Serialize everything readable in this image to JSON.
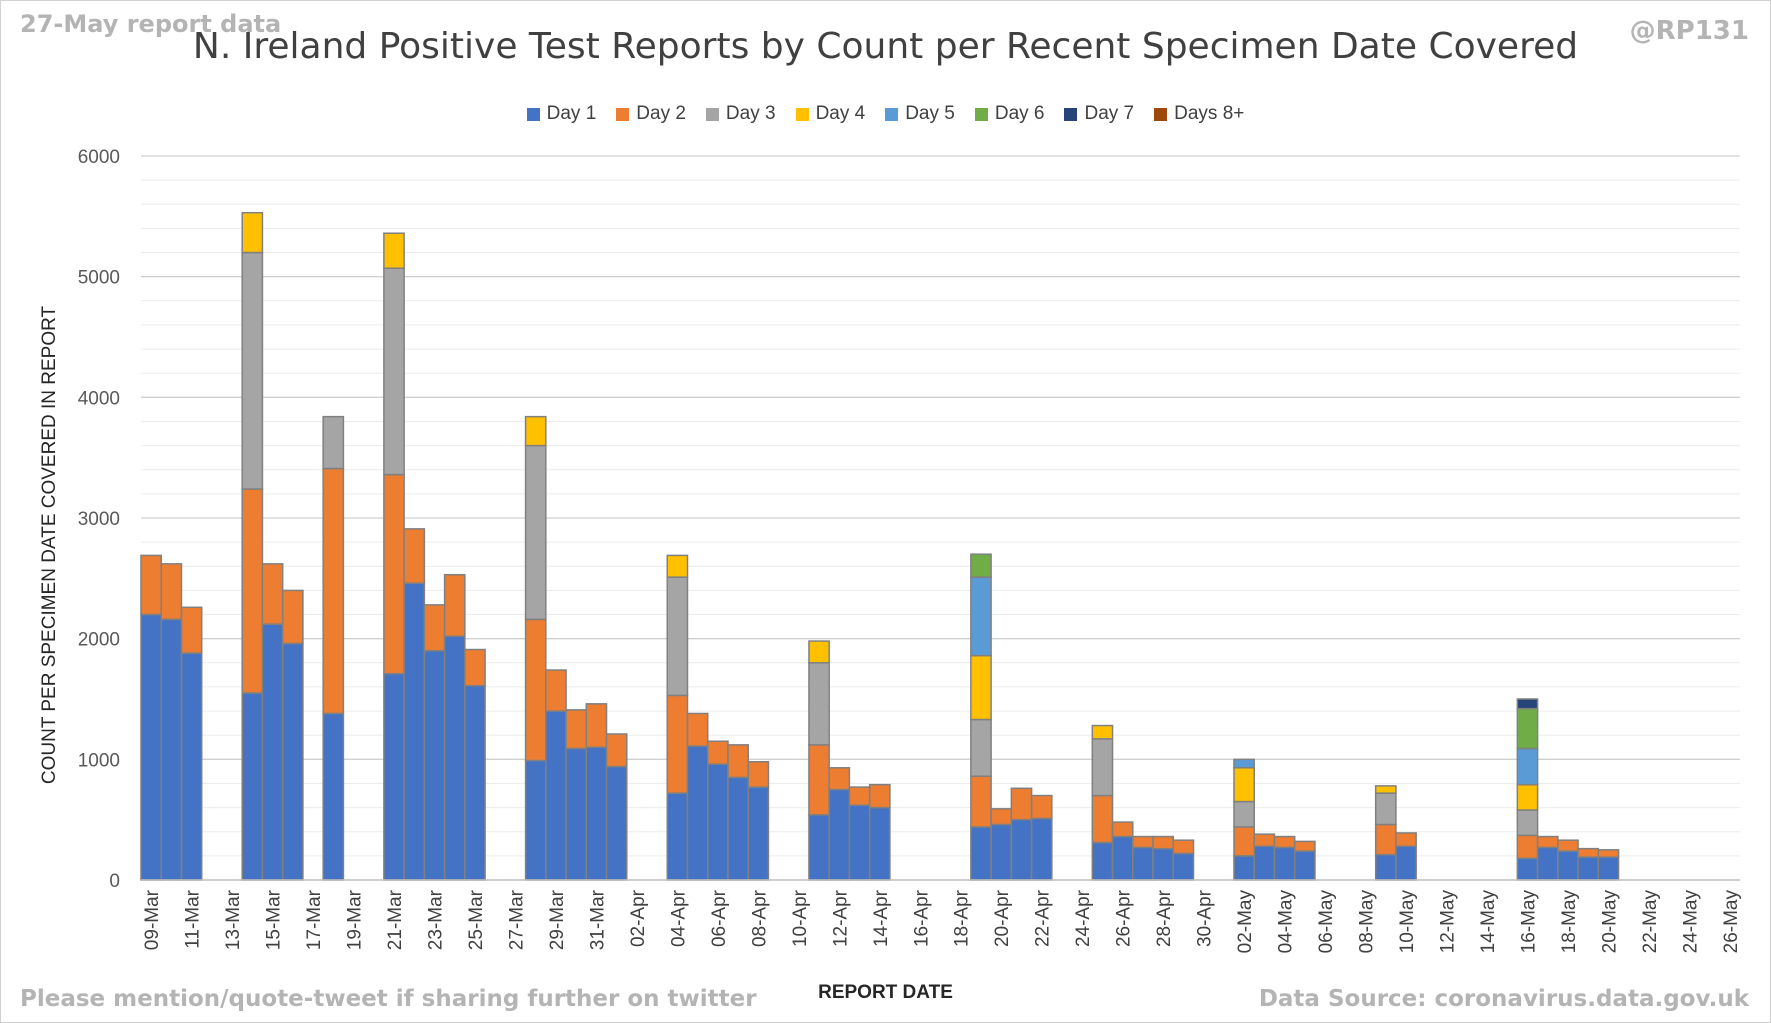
{
  "header": {
    "report_note": "27-May report data",
    "handle": "@RP131"
  },
  "footer": {
    "mention_note": "Please mention/quote-tweet if sharing further on twitter",
    "source_note": "Data Source: coronavirus.data.gov.uk"
  },
  "colors": {
    "Day 1": "#4472C4",
    "Day 2": "#ED7D31",
    "Day 3": "#A5A5A5",
    "Day 4": "#FFC000",
    "Day 5": "#5B9BD5",
    "Day 6": "#70AD47",
    "Day 7": "#264478",
    "Days 8+": "#9E480E",
    "gridline": "#d9d9d9",
    "bar_outline": "#808080"
  },
  "chart_data": {
    "type": "bar",
    "stacked": true,
    "title": "N. Ireland Positive Test Reports by Count per Recent Specimen Date Covered",
    "xlabel": "REPORT DATE",
    "ylabel": "COUNT PER SPECIMEN DATE COVERED IN REPORT",
    "ylim": [
      0,
      6000
    ],
    "yticks": [
      0,
      1000,
      2000,
      3000,
      4000,
      5000,
      6000
    ],
    "grid": true,
    "legend_position": "top",
    "categories": [
      "09-Mar",
      "10-Mar",
      "11-Mar",
      "12-Mar",
      "13-Mar",
      "14-Mar",
      "15-Mar",
      "16-Mar",
      "17-Mar",
      "18-Mar",
      "19-Mar",
      "20-Mar",
      "21-Mar",
      "22-Mar",
      "23-Mar",
      "24-Mar",
      "25-Mar",
      "26-Mar",
      "27-Mar",
      "28-Mar",
      "29-Mar",
      "30-Mar",
      "31-Mar",
      "01-Apr",
      "02-Apr",
      "03-Apr",
      "04-Apr",
      "05-Apr",
      "06-Apr",
      "07-Apr",
      "08-Apr",
      "09-Apr",
      "10-Apr",
      "11-Apr",
      "12-Apr",
      "13-Apr",
      "14-Apr",
      "15-Apr",
      "16-Apr",
      "17-Apr",
      "18-Apr",
      "19-Apr",
      "20-Apr",
      "21-Apr",
      "22-Apr",
      "23-Apr",
      "24-Apr",
      "25-Apr",
      "26-Apr",
      "27-Apr",
      "28-Apr",
      "29-Apr",
      "30-Apr",
      "01-May",
      "02-May",
      "03-May",
      "04-May",
      "05-May",
      "06-May",
      "07-May",
      "08-May",
      "09-May",
      "10-May",
      "11-May",
      "12-May",
      "13-May",
      "14-May",
      "15-May",
      "16-May",
      "17-May",
      "18-May",
      "19-May",
      "20-May",
      "21-May",
      "22-May",
      "23-May",
      "24-May",
      "25-May",
      "26-May"
    ],
    "tick_labels": [
      "09-Mar",
      "11-Mar",
      "13-Mar",
      "15-Mar",
      "17-Mar",
      "19-Mar",
      "21-Mar",
      "23-Mar",
      "25-Mar",
      "27-Mar",
      "29-Mar",
      "31-Mar",
      "02-Apr",
      "04-Apr",
      "06-Apr",
      "08-Apr",
      "10-Apr",
      "12-Apr",
      "14-Apr",
      "16-Apr",
      "18-Apr",
      "20-Apr",
      "22-Apr",
      "24-Apr",
      "26-Apr",
      "28-Apr",
      "30-Apr",
      "02-May",
      "04-May",
      "06-May",
      "08-May",
      "10-May",
      "12-May",
      "14-May",
      "16-May",
      "18-May",
      "20-May",
      "22-May",
      "24-May",
      "26-May"
    ],
    "series": [
      {
        "name": "Day 1",
        "values": [
          2200,
          2160,
          1880,
          0,
          0,
          1550,
          2120,
          1960,
          0,
          1380,
          0,
          0,
          1710,
          2460,
          1900,
          2020,
          1610,
          0,
          0,
          990,
          1400,
          1090,
          1100,
          940,
          0,
          0,
          720,
          1110,
          960,
          850,
          770,
          0,
          0,
          540,
          750,
          620,
          600,
          0,
          0,
          0,
          0,
          440,
          460,
          500,
          510,
          0,
          0,
          310,
          360,
          270,
          260,
          220,
          0,
          0,
          200,
          280,
          270,
          240,
          0,
          0,
          0,
          210,
          280,
          0,
          0,
          0,
          0,
          0,
          180,
          270,
          240,
          190,
          190,
          0,
          0,
          0,
          0,
          0,
          0
        ]
      },
      {
        "name": "Day 2",
        "values": [
          490,
          460,
          380,
          0,
          0,
          1690,
          500,
          440,
          0,
          2030,
          0,
          0,
          1650,
          450,
          380,
          510,
          300,
          0,
          0,
          1170,
          340,
          320,
          360,
          270,
          0,
          0,
          810,
          270,
          190,
          270,
          210,
          0,
          0,
          580,
          180,
          150,
          190,
          0,
          0,
          0,
          0,
          420,
          130,
          260,
          190,
          0,
          0,
          390,
          120,
          90,
          100,
          110,
          0,
          0,
          240,
          100,
          90,
          80,
          0,
          0,
          0,
          250,
          110,
          0,
          0,
          0,
          0,
          0,
          190,
          90,
          90,
          70,
          60,
          0,
          0,
          0,
          0,
          0,
          0
        ]
      },
      {
        "name": "Day 3",
        "values": [
          0,
          0,
          0,
          0,
          0,
          1960,
          0,
          0,
          0,
          430,
          0,
          0,
          1710,
          0,
          0,
          0,
          0,
          0,
          0,
          1440,
          0,
          0,
          0,
          0,
          0,
          0,
          980,
          0,
          0,
          0,
          0,
          0,
          0,
          680,
          0,
          0,
          0,
          0,
          0,
          0,
          0,
          470,
          0,
          0,
          0,
          0,
          0,
          470,
          0,
          0,
          0,
          0,
          0,
          0,
          210,
          0,
          0,
          0,
          0,
          0,
          0,
          260,
          0,
          0,
          0,
          0,
          0,
          0,
          210,
          0,
          0,
          0,
          0,
          0,
          0,
          0,
          0,
          0,
          0
        ]
      },
      {
        "name": "Day 4",
        "values": [
          0,
          0,
          0,
          0,
          0,
          330,
          0,
          0,
          0,
          0,
          0,
          0,
          290,
          0,
          0,
          0,
          0,
          0,
          0,
          240,
          0,
          0,
          0,
          0,
          0,
          0,
          180,
          0,
          0,
          0,
          0,
          0,
          0,
          180,
          0,
          0,
          0,
          0,
          0,
          0,
          0,
          530,
          0,
          0,
          0,
          0,
          0,
          110,
          0,
          0,
          0,
          0,
          0,
          0,
          280,
          0,
          0,
          0,
          0,
          0,
          0,
          60,
          0,
          0,
          0,
          0,
          0,
          0,
          210,
          0,
          0,
          0,
          0,
          0,
          0,
          0,
          0,
          0,
          0
        ]
      },
      {
        "name": "Day 5",
        "values": [
          0,
          0,
          0,
          0,
          0,
          0,
          0,
          0,
          0,
          0,
          0,
          0,
          0,
          0,
          0,
          0,
          0,
          0,
          0,
          0,
          0,
          0,
          0,
          0,
          0,
          0,
          0,
          0,
          0,
          0,
          0,
          0,
          0,
          0,
          0,
          0,
          0,
          0,
          0,
          0,
          0,
          650,
          0,
          0,
          0,
          0,
          0,
          0,
          0,
          0,
          0,
          0,
          0,
          0,
          70,
          0,
          0,
          0,
          0,
          0,
          0,
          0,
          0,
          0,
          0,
          0,
          0,
          0,
          300,
          0,
          0,
          0,
          0,
          0,
          0,
          0,
          0,
          0,
          0
        ]
      },
      {
        "name": "Day 6",
        "values": [
          0,
          0,
          0,
          0,
          0,
          0,
          0,
          0,
          0,
          0,
          0,
          0,
          0,
          0,
          0,
          0,
          0,
          0,
          0,
          0,
          0,
          0,
          0,
          0,
          0,
          0,
          0,
          0,
          0,
          0,
          0,
          0,
          0,
          0,
          0,
          0,
          0,
          0,
          0,
          0,
          0,
          190,
          0,
          0,
          0,
          0,
          0,
          0,
          0,
          0,
          0,
          0,
          0,
          0,
          0,
          0,
          0,
          0,
          0,
          0,
          0,
          0,
          0,
          0,
          0,
          0,
          0,
          0,
          330,
          0,
          0,
          0,
          0,
          0,
          0,
          0,
          0,
          0,
          0
        ]
      },
      {
        "name": "Day 7",
        "values": [
          0,
          0,
          0,
          0,
          0,
          0,
          0,
          0,
          0,
          0,
          0,
          0,
          0,
          0,
          0,
          0,
          0,
          0,
          0,
          0,
          0,
          0,
          0,
          0,
          0,
          0,
          0,
          0,
          0,
          0,
          0,
          0,
          0,
          0,
          0,
          0,
          0,
          0,
          0,
          0,
          0,
          0,
          0,
          0,
          0,
          0,
          0,
          0,
          0,
          0,
          0,
          0,
          0,
          0,
          0,
          0,
          0,
          0,
          0,
          0,
          0,
          0,
          0,
          0,
          0,
          0,
          0,
          0,
          80,
          0,
          0,
          0,
          0,
          0,
          0,
          0,
          0,
          0,
          0
        ]
      },
      {
        "name": "Days 8+",
        "values": [
          0,
          0,
          0,
          0,
          0,
          0,
          0,
          0,
          0,
          0,
          0,
          0,
          0,
          0,
          0,
          0,
          0,
          0,
          0,
          0,
          0,
          0,
          0,
          0,
          0,
          0,
          0,
          0,
          0,
          0,
          0,
          0,
          0,
          0,
          0,
          0,
          0,
          0,
          0,
          0,
          0,
          0,
          0,
          0,
          0,
          0,
          0,
          0,
          0,
          0,
          0,
          0,
          0,
          0,
          0,
          0,
          0,
          0,
          0,
          0,
          0,
          0,
          0,
          0,
          0,
          0,
          0,
          0,
          0,
          0,
          0,
          0,
          0,
          0,
          0,
          0,
          0,
          0,
          0
        ]
      }
    ]
  }
}
